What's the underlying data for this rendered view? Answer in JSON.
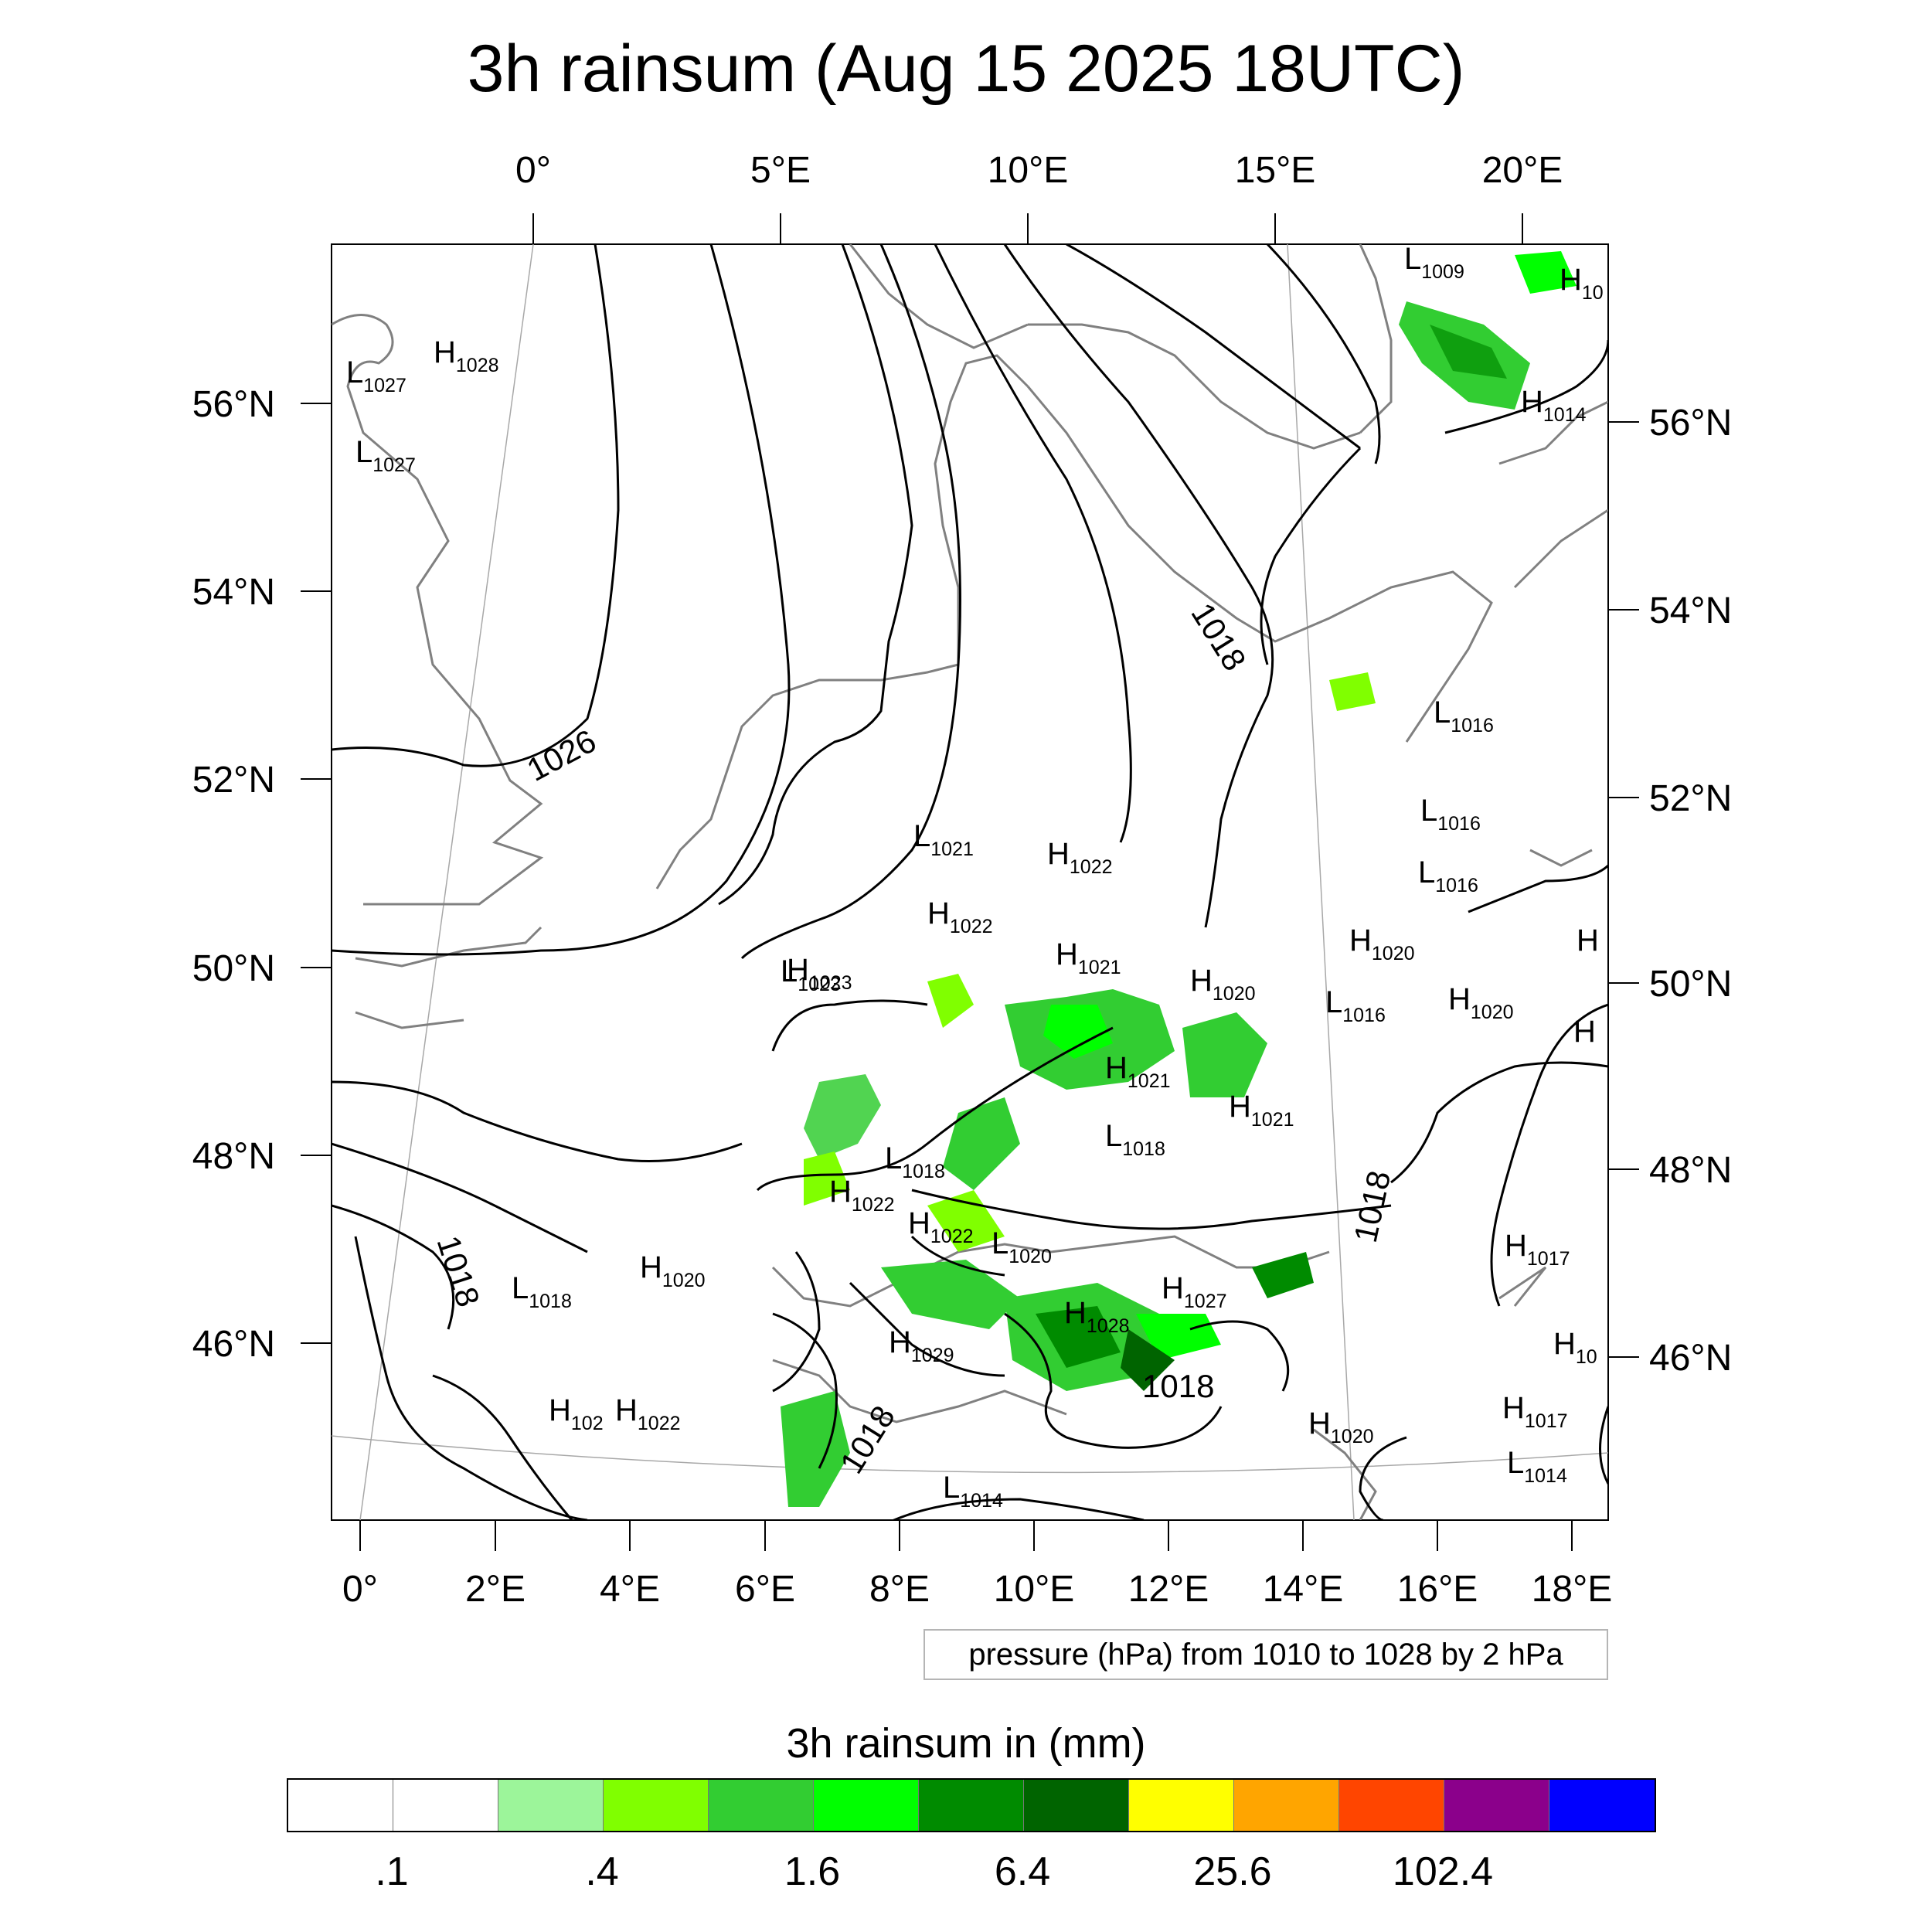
{
  "title": "3h rainsum (Aug 15 2025 18UTC)",
  "map": {
    "top_lon_labels": [
      "0°",
      "5°E",
      "10°E",
      "15°E",
      "20°E"
    ],
    "bottom_lon_labels": [
      "0°",
      "2°E",
      "4°E",
      "6°E",
      "8°E",
      "10°E",
      "12°E",
      "14°E",
      "16°E",
      "18°E"
    ],
    "left_lat_labels": [
      "56°N",
      "54°N",
      "52°N",
      "50°N",
      "48°N",
      "46°N"
    ],
    "right_lat_labels": [
      "56°N",
      "54°N",
      "52°N",
      "50°N",
      "48°N",
      "46°N"
    ],
    "pressure_centers": [
      {
        "type": "L",
        "value": "1009"
      },
      {
        "type": "H",
        "value": "10"
      },
      {
        "type": "H",
        "value": "1014"
      },
      {
        "type": "H",
        "value": "1028"
      },
      {
        "type": "L",
        "value": "1027"
      },
      {
        "type": "L",
        "value": "1027"
      },
      {
        "type": "L",
        "value": "1016"
      },
      {
        "type": "L",
        "value": "1016"
      },
      {
        "type": "L",
        "value": "1016"
      },
      {
        "type": "L",
        "value": "1021"
      },
      {
        "type": "H",
        "value": "1022"
      },
      {
        "type": "H",
        "value": "1022"
      },
      {
        "type": "L",
        "value": "1023"
      },
      {
        "type": "H",
        "value": "1023"
      },
      {
        "type": "H",
        "value": "1021"
      },
      {
        "type": "H",
        "value": "1020"
      },
      {
        "type": "H",
        "value": "1020"
      },
      {
        "type": "H",
        "value": "1020"
      },
      {
        "type": "L",
        "value": "1016"
      },
      {
        "type": "H",
        "value": ""
      },
      {
        "type": "H",
        "value": ""
      },
      {
        "type": "H",
        "value": "1021"
      },
      {
        "type": "H",
        "value": "1021"
      },
      {
        "type": "L",
        "value": "1018"
      },
      {
        "type": "L",
        "value": "1018"
      },
      {
        "type": "H",
        "value": "1022"
      },
      {
        "type": "H",
        "value": "1022"
      },
      {
        "type": "L",
        "value": "1020"
      },
      {
        "type": "H",
        "value": "1017"
      },
      {
        "type": "H",
        "value": "1020"
      },
      {
        "type": "L",
        "value": "1018"
      },
      {
        "type": "H",
        "value": "1027"
      },
      {
        "type": "H",
        "value": "1028"
      },
      {
        "type": "H",
        "value": "1029"
      },
      {
        "type": "H",
        "value": "10"
      },
      {
        "type": "H",
        "value": "102"
      },
      {
        "type": "H",
        "value": "1022"
      },
      {
        "type": "H",
        "value": "1020"
      },
      {
        "type": "H",
        "value": "1017"
      },
      {
        "type": "L",
        "value": "1014"
      },
      {
        "type": "L",
        "value": "1014"
      }
    ],
    "contour_labels": [
      "1026",
      "1018",
      "1018",
      "1018",
      "1018",
      "1018"
    ]
  },
  "contour_note": "pressure (hPa) from 1010 to 1028 by 2 hPa",
  "colorbar": {
    "title": "3h rainsum in (mm)",
    "colors": [
      "#ffffff",
      "#ffffff",
      "#9cf59a",
      "#80ff00",
      "#32cd32",
      "#00ff00",
      "#008b00",
      "#006400",
      "#ffff00",
      "#ffa500",
      "#ff4500",
      "#8b008b",
      "#0000ff"
    ],
    "labels": [
      ".1",
      ".4",
      "1.6",
      "6.4",
      "25.6",
      "102.4"
    ]
  },
  "colors": {
    "land_outline": "#808080",
    "isobar": "#000000",
    "grid": "#a0a0a0"
  }
}
